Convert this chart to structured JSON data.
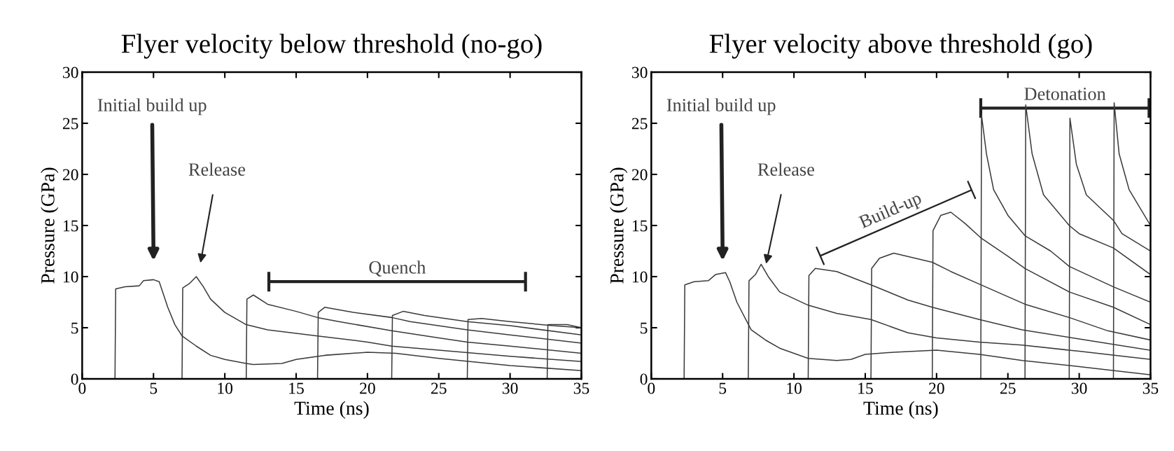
{
  "chart_data": [
    {
      "type": "line",
      "title": "Flyer velocity below threshold (no-go)",
      "xlabel": "Time (ns)",
      "ylabel": "Pressure (GPa)",
      "xlim": [
        0,
        35
      ],
      "ylim": [
        0,
        30
      ],
      "xticks": [
        0,
        5,
        10,
        15,
        20,
        25,
        30,
        35
      ],
      "yticks": [
        0,
        5,
        10,
        15,
        20,
        25,
        30
      ],
      "grid": false,
      "series": [
        {
          "color": "#3a3a3a",
          "x": [
            2.3,
            2.35,
            3,
            4,
            4.3,
            5,
            5.4,
            6,
            6.5,
            7,
            8,
            9,
            10,
            11.5,
            12,
            14,
            15,
            17,
            20,
            22,
            25,
            30,
            35
          ],
          "values": [
            0,
            8.8,
            9,
            9.1,
            9.6,
            9.7,
            9.5,
            7,
            5.3,
            4.2,
            3.2,
            2.3,
            1.9,
            1.5,
            1.4,
            1.5,
            1.9,
            2.3,
            2.6,
            2.5,
            2.0,
            1.3,
            0.8
          ]
        },
        {
          "color": "#3a3a3a",
          "x": [
            7.0,
            7.05,
            7.5,
            8,
            8.5,
            9,
            10,
            11.5,
            13,
            16.5,
            20,
            21.7,
            25,
            30,
            35
          ],
          "values": [
            0,
            8.9,
            9.3,
            10.0,
            9,
            7.8,
            6.5,
            5.3,
            4.8,
            4.2,
            3.6,
            3.2,
            2.8,
            2.2,
            1.7
          ]
        },
        {
          "color": "#3a3a3a",
          "x": [
            11.5,
            11.55,
            12,
            13,
            15,
            16.5,
            18,
            21.7,
            25,
            27,
            30,
            35
          ],
          "values": [
            0,
            7.8,
            8.2,
            7.3,
            6.6,
            6.0,
            5.6,
            4.7,
            4.0,
            3.6,
            3.2,
            2.5
          ]
        },
        {
          "color": "#3a3a3a",
          "x": [
            16.5,
            16.55,
            17,
            19,
            21.7,
            23,
            27,
            30,
            35
          ],
          "values": [
            0,
            6.5,
            7.0,
            6.5,
            6.0,
            5.6,
            4.8,
            4.3,
            3.5
          ]
        },
        {
          "color": "#3a3a3a",
          "x": [
            21.7,
            21.75,
            22.5,
            24,
            27,
            30,
            35
          ],
          "values": [
            0,
            6.2,
            6.6,
            6.2,
            5.6,
            5.2,
            4.3
          ]
        },
        {
          "color": "#3a3a3a",
          "x": [
            27,
            27.05,
            28,
            30,
            33,
            35
          ],
          "values": [
            0,
            5.8,
            5.9,
            5.6,
            5.2,
            5.0
          ]
        },
        {
          "color": "#3a3a3a",
          "x": [
            32.6,
            32.65,
            34,
            35
          ],
          "values": [
            0,
            5.3,
            5.3,
            5.0
          ]
        }
      ],
      "annotations": [
        "Initial build up",
        "Release",
        "Quench"
      ]
    },
    {
      "type": "line",
      "title": "Flyer velocity above threshold (go)",
      "xlabel": "Time (ns)",
      "ylabel": "Pressure (GPa)",
      "xlim": [
        0,
        35
      ],
      "ylim": [
        0,
        30
      ],
      "xticks": [
        0,
        5,
        10,
        15,
        20,
        25,
        30,
        35
      ],
      "yticks": [
        0,
        5,
        10,
        15,
        20,
        25,
        30
      ],
      "grid": false,
      "series": [
        {
          "color": "#3a3a3a",
          "x": [
            2.3,
            2.35,
            3,
            4,
            4.5,
            5.2,
            5.5,
            6,
            7,
            8,
            9,
            11,
            13,
            14,
            15,
            17,
            20,
            23,
            26,
            30,
            35
          ],
          "values": [
            0,
            9.2,
            9.5,
            9.6,
            10.2,
            10.4,
            9.5,
            7.5,
            4.8,
            3.8,
            3.0,
            2.0,
            1.8,
            1.9,
            2.4,
            2.6,
            2.8,
            2.4,
            1.8,
            1.2,
            0.4
          ]
        },
        {
          "color": "#3a3a3a",
          "x": [
            6.8,
            6.85,
            7.3,
            7.7,
            8.2,
            9,
            11,
            13,
            15.4,
            18,
            20,
            23,
            26,
            30,
            35
          ],
          "values": [
            0,
            9.6,
            10.2,
            11.2,
            10,
            8.5,
            7.2,
            6.4,
            5.8,
            4.5,
            4.0,
            3.6,
            3.3,
            2.7,
            1.9
          ]
        },
        {
          "color": "#3a3a3a",
          "x": [
            11.0,
            11.05,
            11.5,
            13,
            15.4,
            18,
            19.7,
            23,
            26,
            30,
            35
          ],
          "values": [
            0,
            10.1,
            10.8,
            10.5,
            9.2,
            7.7,
            7.0,
            5.8,
            4.8,
            3.9,
            2.8
          ]
        },
        {
          "color": "#3a3a3a",
          "x": [
            15.4,
            15.45,
            16,
            17,
            19.7,
            21,
            23.1,
            26.2,
            29.3,
            32,
            35
          ],
          "values": [
            0,
            10.8,
            11.8,
            12.3,
            11.4,
            10.5,
            9.2,
            7.3,
            6.0,
            4.7,
            3.8
          ]
        },
        {
          "color": "#3a3a3a",
          "x": [
            19.7,
            19.75,
            20.3,
            21,
            22,
            23.1,
            25,
            26.2,
            29.3,
            32.4,
            35
          ],
          "values": [
            0,
            14.5,
            16.0,
            16.3,
            15.2,
            13.8,
            12.0,
            10.8,
            8.5,
            7.0,
            5.3
          ]
        },
        {
          "color": "#3a3a3a",
          "x": [
            23.1,
            23.15,
            23.5,
            24,
            25,
            26.2,
            28,
            29.3,
            32.4,
            35
          ],
          "values": [
            0,
            25.8,
            22,
            18.5,
            16,
            14,
            12.5,
            11,
            9,
            7.5
          ]
        },
        {
          "color": "#3a3a3a",
          "x": [
            26.2,
            26.25,
            26.7,
            27.5,
            29.3,
            30,
            32.4,
            35
          ],
          "values": [
            0,
            26.8,
            22,
            18,
            15,
            14.2,
            12.8,
            10.2
          ]
        },
        {
          "color": "#3a3a3a",
          "x": [
            29.3,
            29.35,
            29.8,
            30.5,
            32.4,
            33,
            35
          ],
          "values": [
            0,
            25.5,
            21,
            18,
            15.5,
            14.2,
            12.5
          ]
        },
        {
          "color": "#3a3a3a",
          "x": [
            32.4,
            32.45,
            32.8,
            33.5,
            35
          ],
          "values": [
            0,
            27,
            22,
            18.5,
            15
          ]
        }
      ],
      "annotations": [
        "Initial build up",
        "Release",
        "Build-up",
        "Detonation"
      ]
    }
  ]
}
